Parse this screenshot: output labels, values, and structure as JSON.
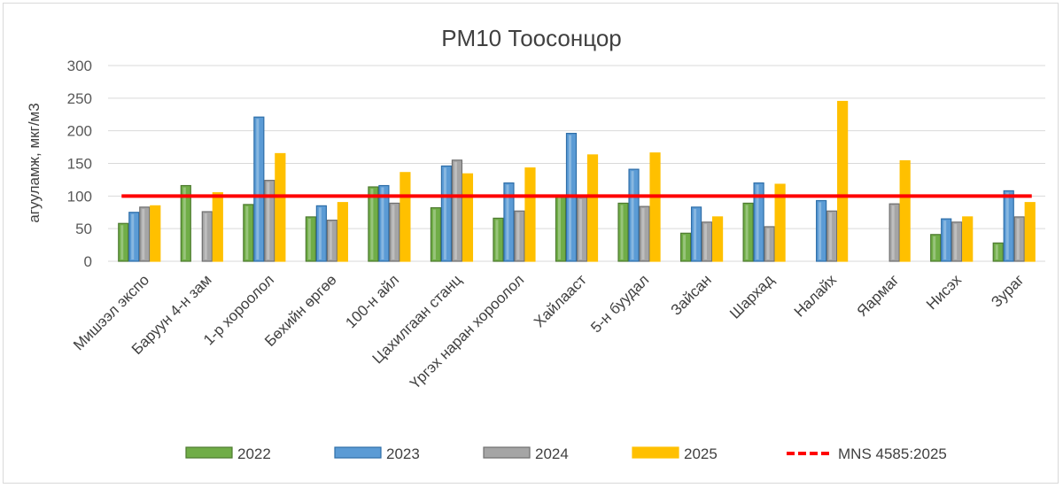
{
  "chart_data": {
    "type": "bar",
    "title": "PM10 Тоосонцор",
    "xlabel": "",
    "ylabel": "агууламж, мкг/м3",
    "ylim": [
      0,
      300
    ],
    "yticks": [
      0,
      50,
      100,
      150,
      200,
      250,
      300
    ],
    "grid": true,
    "legend_position": "bottom",
    "categories": [
      "Мишээл экспо",
      "Баруун 4-н зам",
      "1-р хороолол",
      "Бөхийн өргөө",
      "100-н айл",
      "Цахилгаан станц",
      "Үргэх наран хороолол",
      "Хайлааст",
      "5-н буудал",
      "Зайсан",
      "Шархад",
      "Налайх",
      "Яармаг",
      "Нисэх",
      "Зураг"
    ],
    "series": [
      {
        "name": "2022",
        "color": "#70ad47",
        "values": [
          58,
          116,
          87,
          68,
          114,
          82,
          66,
          100,
          89,
          43,
          89,
          null,
          null,
          41,
          28
        ]
      },
      {
        "name": "2023",
        "color": "#5b9bd5",
        "values": [
          75,
          null,
          221,
          85,
          116,
          146,
          120,
          196,
          141,
          83,
          120,
          93,
          null,
          65,
          108
        ]
      },
      {
        "name": "2024",
        "color": "#a5a5a5",
        "values": [
          83,
          76,
          124,
          63,
          89,
          155,
          77,
          98,
          84,
          60,
          53,
          77,
          88,
          60,
          68
        ]
      },
      {
        "name": "2025",
        "color": "#ffc000",
        "values": [
          85,
          105,
          165,
          90,
          136,
          134,
          143,
          163,
          166,
          68,
          118,
          245,
          154,
          68,
          90
        ]
      }
    ],
    "reference_line": {
      "name": "MNS 4585:2025",
      "value": 100,
      "color": "#ff0000"
    }
  }
}
